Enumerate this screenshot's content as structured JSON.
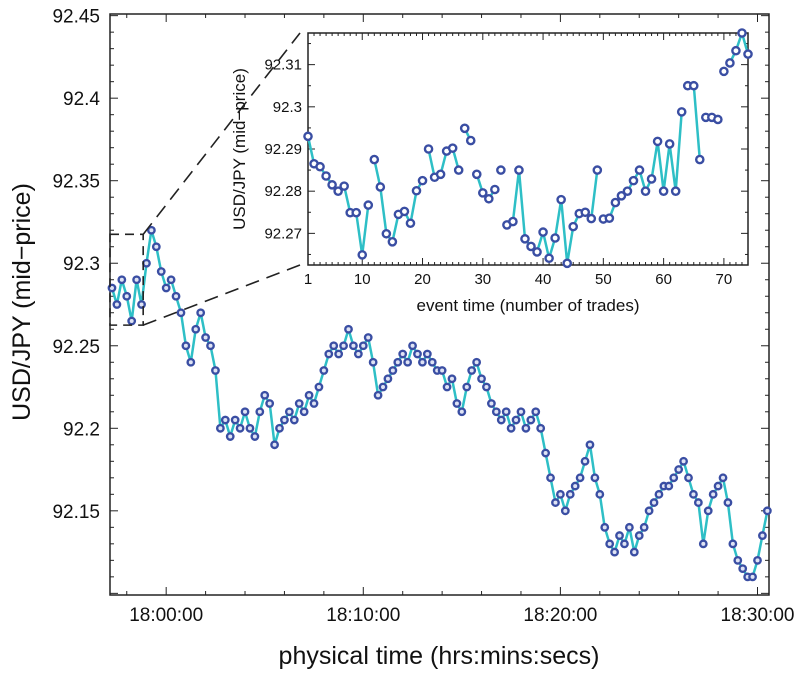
{
  "chart_data": [
    {
      "type": "line",
      "xlabel": "physical time (hrs:mins:secs)",
      "ylabel": "USD/JPY (mid−price)",
      "xlim": [
        "17:57:09",
        "18:30:35"
      ],
      "ylim": [
        92.099,
        92.451
      ],
      "xticks": [
        "18:00:00",
        "18:10:00",
        "18:20:00",
        "18:30:00"
      ],
      "yticks": [
        "92.15",
        "92.2",
        "92.25",
        "92.3",
        "92.35",
        "92.4",
        "92.45"
      ],
      "grid": false,
      "markers": true,
      "colors": {
        "line": "#2ebfc6",
        "marker": "#3a4ea3"
      },
      "zoom_box": {
        "x": [
          "17:57:09",
          "17:58:50"
        ],
        "y": [
          92.2625,
          92.3175
        ]
      },
      "points": [
        [
          "17:57:15",
          92.285
        ],
        [
          "17:57:30",
          92.275
        ],
        [
          "17:57:45",
          92.29
        ],
        [
          "17:58:00",
          92.28
        ],
        [
          "17:58:15",
          92.265
        ],
        [
          "17:58:30",
          92.29
        ],
        [
          "17:58:45",
          92.275
        ],
        [
          "17:59:00",
          92.3
        ],
        [
          "17:59:15",
          92.32
        ],
        [
          "17:59:30",
          92.31
        ],
        [
          "17:59:45",
          92.295
        ],
        [
          "18:00:00",
          92.285
        ],
        [
          "18:00:15",
          92.29
        ],
        [
          "18:00:30",
          92.28
        ],
        [
          "18:00:45",
          92.27
        ],
        [
          "18:01:00",
          92.25
        ],
        [
          "18:01:15",
          92.24
        ],
        [
          "18:01:30",
          92.26
        ],
        [
          "18:01:45",
          92.27
        ],
        [
          "18:02:00",
          92.255
        ],
        [
          "18:02:15",
          92.25
        ],
        [
          "18:02:30",
          92.235
        ],
        [
          "18:02:45",
          92.2
        ],
        [
          "18:03:00",
          92.205
        ],
        [
          "18:03:15",
          92.195
        ],
        [
          "18:03:30",
          92.205
        ],
        [
          "18:03:45",
          92.2
        ],
        [
          "18:04:00",
          92.21
        ],
        [
          "18:04:15",
          92.2
        ],
        [
          "18:04:30",
          92.195
        ],
        [
          "18:04:45",
          92.21
        ],
        [
          "18:05:00",
          92.22
        ],
        [
          "18:05:15",
          92.215
        ],
        [
          "18:05:30",
          92.19
        ],
        [
          "18:05:45",
          92.2
        ],
        [
          "18:06:00",
          92.205
        ],
        [
          "18:06:15",
          92.21
        ],
        [
          "18:06:30",
          92.205
        ],
        [
          "18:06:45",
          92.215
        ],
        [
          "18:07:00",
          92.21
        ],
        [
          "18:07:15",
          92.22
        ],
        [
          "18:07:30",
          92.215
        ],
        [
          "18:07:45",
          92.225
        ],
        [
          "18:08:00",
          92.235
        ],
        [
          "18:08:15",
          92.245
        ],
        [
          "18:08:30",
          92.25
        ],
        [
          "18:08:45",
          92.245
        ],
        [
          "18:09:00",
          92.25
        ],
        [
          "18:09:15",
          92.26
        ],
        [
          "18:09:30",
          92.25
        ],
        [
          "18:09:45",
          92.245
        ],
        [
          "18:10:00",
          92.25
        ],
        [
          "18:10:15",
          92.255
        ],
        [
          "18:10:30",
          92.24
        ],
        [
          "18:10:45",
          92.22
        ],
        [
          "18:11:00",
          92.225
        ],
        [
          "18:11:15",
          92.23
        ],
        [
          "18:11:30",
          92.235
        ],
        [
          "18:11:45",
          92.24
        ],
        [
          "18:12:00",
          92.245
        ],
        [
          "18:12:15",
          92.24
        ],
        [
          "18:12:30",
          92.25
        ],
        [
          "18:12:45",
          92.245
        ],
        [
          "18:13:00",
          92.24
        ],
        [
          "18:13:15",
          92.245
        ],
        [
          "18:13:30",
          92.24
        ],
        [
          "18:13:45",
          92.235
        ],
        [
          "18:14:00",
          92.235
        ],
        [
          "18:14:15",
          92.225
        ],
        [
          "18:14:30",
          92.23
        ],
        [
          "18:14:45",
          92.215
        ],
        [
          "18:15:00",
          92.21
        ],
        [
          "18:15:15",
          92.225
        ],
        [
          "18:15:30",
          92.235
        ],
        [
          "18:15:45",
          92.24
        ],
        [
          "18:16:00",
          92.23
        ],
        [
          "18:16:15",
          92.225
        ],
        [
          "18:16:30",
          92.215
        ],
        [
          "18:16:45",
          92.21
        ],
        [
          "18:17:00",
          92.205
        ],
        [
          "18:17:15",
          92.21
        ],
        [
          "18:17:30",
          92.2
        ],
        [
          "18:17:45",
          92.205
        ],
        [
          "18:18:00",
          92.21
        ],
        [
          "18:18:15",
          92.2
        ],
        [
          "18:18:30",
          92.205
        ],
        [
          "18:18:45",
          92.21
        ],
        [
          "18:19:00",
          92.2
        ],
        [
          "18:19:15",
          92.185
        ],
        [
          "18:19:30",
          92.17
        ],
        [
          "18:19:45",
          92.155
        ],
        [
          "18:20:00",
          92.16
        ],
        [
          "18:20:15",
          92.15
        ],
        [
          "18:20:30",
          92.16
        ],
        [
          "18:20:45",
          92.165
        ],
        [
          "18:21:00",
          92.17
        ],
        [
          "18:21:15",
          92.18
        ],
        [
          "18:21:30",
          92.19
        ],
        [
          "18:21:45",
          92.17
        ],
        [
          "18:22:00",
          92.16
        ],
        [
          "18:22:15",
          92.14
        ],
        [
          "18:22:30",
          92.13
        ],
        [
          "18:22:45",
          92.125
        ],
        [
          "18:23:00",
          92.135
        ],
        [
          "18:23:15",
          92.13
        ],
        [
          "18:23:30",
          92.14
        ],
        [
          "18:23:45",
          92.125
        ],
        [
          "18:24:00",
          92.135
        ],
        [
          "18:24:15",
          92.14
        ],
        [
          "18:24:30",
          92.15
        ],
        [
          "18:24:45",
          92.155
        ],
        [
          "18:25:00",
          92.16
        ],
        [
          "18:25:15",
          92.165
        ],
        [
          "18:25:30",
          92.165
        ],
        [
          "18:25:45",
          92.17
        ],
        [
          "18:26:00",
          92.175
        ],
        [
          "18:26:15",
          92.18
        ],
        [
          "18:26:30",
          92.17
        ],
        [
          "18:26:45",
          92.16
        ],
        [
          "18:27:00",
          92.155
        ],
        [
          "18:27:15",
          92.13
        ],
        [
          "18:27:30",
          92.15
        ],
        [
          "18:27:45",
          92.16
        ],
        [
          "18:28:00",
          92.165
        ],
        [
          "18:28:15",
          92.17
        ],
        [
          "18:28:30",
          92.155
        ],
        [
          "18:28:45",
          92.13
        ],
        [
          "18:29:00",
          92.12
        ],
        [
          "18:29:15",
          92.115
        ],
        [
          "18:29:30",
          92.11
        ],
        [
          "18:29:45",
          92.11
        ],
        [
          "18:30:00",
          92.12
        ],
        [
          "18:30:15",
          92.135
        ],
        [
          "18:30:30",
          92.15
        ]
      ]
    },
    {
      "type": "line",
      "xlabel": "event time (number of trades)",
      "ylabel": "USD/JPY (mid−price)",
      "xlim": [
        1,
        74
      ],
      "ylim": [
        92.2625,
        92.3175
      ],
      "xticks": [
        "1",
        "10",
        "20",
        "30",
        "40",
        "50",
        "60",
        "70"
      ],
      "yticks": [
        "92.27",
        "92.28",
        "92.29",
        "92.3",
        "92.31"
      ],
      "grid": false,
      "markers": true,
      "colors": {
        "line": "#2ebfc6",
        "marker": "#3a4ea3"
      },
      "breaks_after": [
        11,
        16,
        20,
        26,
        28,
        32,
        33,
        49,
        52,
        63,
        66,
        69,
        70
      ],
      "values": [
        92.293,
        92.2865,
        92.2858,
        92.2836,
        92.2815,
        92.28,
        92.2812,
        92.2749,
        92.2749,
        92.2649,
        92.2767,
        92.2875,
        92.281,
        92.2699,
        92.268,
        92.2745,
        92.2752,
        92.2724,
        92.2801,
        92.2825,
        92.29,
        92.2833,
        92.284,
        92.2895,
        92.2902,
        92.285,
        92.2949,
        92.292,
        92.284,
        92.2796,
        92.2782,
        92.2804,
        92.285,
        92.272,
        92.2728,
        92.285,
        92.2687,
        92.2669,
        92.2656,
        92.2703,
        92.2641,
        92.2689,
        92.278,
        92.2629,
        92.2716,
        92.2747,
        92.275,
        92.2735,
        92.285,
        92.2734,
        92.2736,
        92.2773,
        92.2789,
        92.28,
        92.2825,
        92.285,
        92.28,
        92.2829,
        92.2918,
        92.28,
        92.2912,
        92.28,
        92.2988,
        92.305,
        92.305,
        92.2875,
        92.2975,
        92.2975,
        92.297,
        92.3084,
        92.3104,
        92.3133,
        92.3175,
        92.3125
      ]
    }
  ]
}
